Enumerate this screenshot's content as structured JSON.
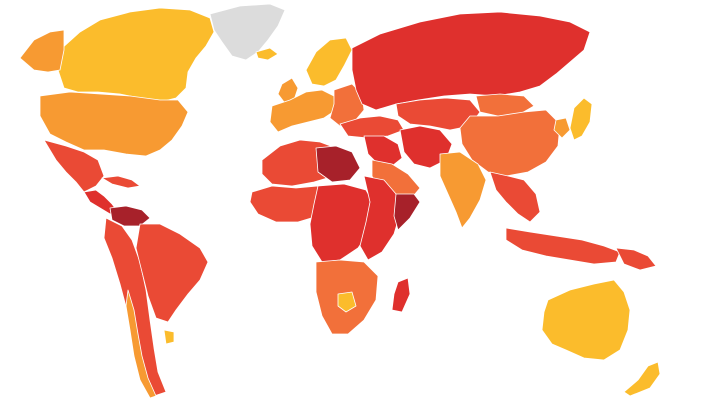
{
  "map": {
    "type": "choropleth-world-map",
    "legend": null,
    "palette": {
      "lightest": "#fbbc2c",
      "light": "#f79a32",
      "medium": "#f2703a",
      "strong": "#ea4a35",
      "stronger": "#df302d",
      "darkest": "#a7212a",
      "no_data": "#dcdcdc"
    },
    "regions": [
      {
        "id": "greenland",
        "score_class": "no_data"
      },
      {
        "id": "canada",
        "score_class": "lightest"
      },
      {
        "id": "alaska",
        "score_class": "light"
      },
      {
        "id": "usa",
        "score_class": "light"
      },
      {
        "id": "mexico",
        "score_class": "strong"
      },
      {
        "id": "central-america",
        "score_class": "stronger"
      },
      {
        "id": "cuba",
        "score_class": "strong"
      },
      {
        "id": "venezuela",
        "score_class": "darkest"
      },
      {
        "id": "south-america",
        "score_class": "strong"
      },
      {
        "id": "brazil",
        "score_class": "strong"
      },
      {
        "id": "chile",
        "score_class": "light"
      },
      {
        "id": "uruguay",
        "score_class": "lightest"
      },
      {
        "id": "iceland",
        "score_class": "lightest"
      },
      {
        "id": "scandinavia",
        "score_class": "lightest"
      },
      {
        "id": "uk-ireland",
        "score_class": "light"
      },
      {
        "id": "western-europe",
        "score_class": "light"
      },
      {
        "id": "eastern-europe",
        "score_class": "medium"
      },
      {
        "id": "russia",
        "score_class": "stronger"
      },
      {
        "id": "turkey-caucasus",
        "score_class": "strong"
      },
      {
        "id": "middle-east",
        "score_class": "stronger"
      },
      {
        "id": "saudi-arabia",
        "score_class": "medium"
      },
      {
        "id": "iran",
        "score_class": "stronger"
      },
      {
        "id": "central-asia",
        "score_class": "strong"
      },
      {
        "id": "china",
        "score_class": "medium"
      },
      {
        "id": "mongolia",
        "score_class": "medium"
      },
      {
        "id": "india",
        "score_class": "light"
      },
      {
        "id": "southeast-asia",
        "score_class": "strong"
      },
      {
        "id": "japan",
        "score_class": "lightest"
      },
      {
        "id": "korea",
        "score_class": "light"
      },
      {
        "id": "indonesia",
        "score_class": "strong"
      },
      {
        "id": "png",
        "score_class": "strong"
      },
      {
        "id": "australia",
        "score_class": "lightest"
      },
      {
        "id": "new-zealand",
        "score_class": "lightest"
      },
      {
        "id": "north-africa",
        "score_class": "strong"
      },
      {
        "id": "libya",
        "score_class": "darkest"
      },
      {
        "id": "west-africa",
        "score_class": "strong"
      },
      {
        "id": "central-africa",
        "score_class": "stronger"
      },
      {
        "id": "east-africa",
        "score_class": "stronger"
      },
      {
        "id": "somalia",
        "score_class": "darkest"
      },
      {
        "id": "southern-africa",
        "score_class": "medium"
      },
      {
        "id": "botswana",
        "score_class": "lightest"
      },
      {
        "id": "madagascar",
        "score_class": "stronger"
      }
    ]
  }
}
